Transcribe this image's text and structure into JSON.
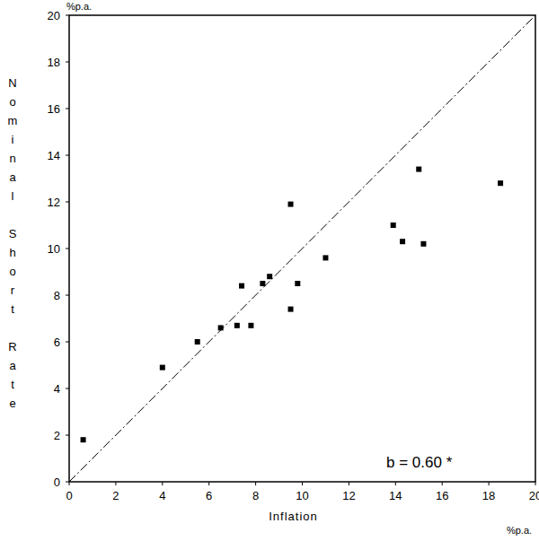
{
  "chart_data": {
    "type": "scatter",
    "x_label": "Inflation",
    "y_label": "Nominal Short Rate",
    "x_unit": "%p.a.",
    "y_unit": "%p.a.",
    "annotations": [
      "b = 0.60 *"
    ],
    "xlim": [
      0,
      20
    ],
    "ylim": [
      0,
      20
    ],
    "xticks": [
      0,
      2,
      4,
      6,
      8,
      10,
      12,
      14,
      16,
      18,
      20
    ],
    "yticks": [
      0,
      2,
      4,
      6,
      8,
      10,
      12,
      14,
      16,
      18,
      20
    ],
    "grid": false,
    "series": [
      {
        "type": "scatter",
        "marker": "square",
        "color": "#000000",
        "x": [
          0.6,
          4.0,
          5.5,
          6.5,
          7.2,
          7.8,
          7.4,
          8.3,
          8.6,
          9.5,
          9.5,
          9.8,
          11.0,
          13.9,
          14.3,
          15.0,
          15.2,
          18.5
        ],
        "values": [
          1.8,
          4.9,
          6.0,
          6.6,
          6.7,
          6.7,
          8.4,
          8.5,
          8.8,
          7.4,
          11.9,
          8.5,
          9.6,
          11.0,
          10.3,
          13.4,
          10.2,
          12.8
        ]
      },
      {
        "type": "line",
        "line_style": "dash-dot",
        "color": "#000000",
        "x": [
          0,
          20
        ],
        "values": [
          0,
          20
        ]
      }
    ]
  }
}
